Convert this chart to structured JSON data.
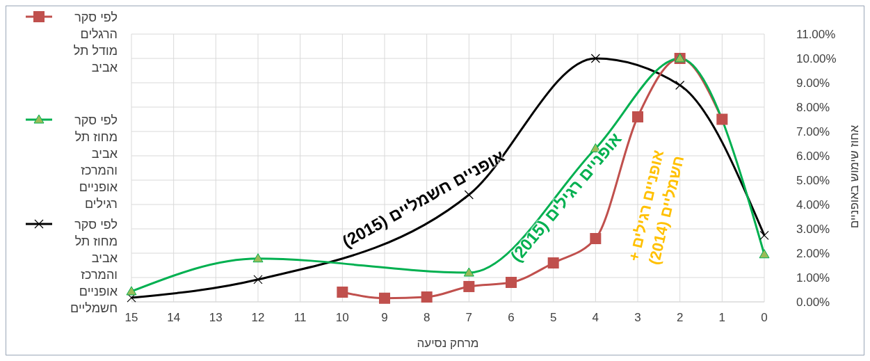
{
  "chart_data": {
    "type": "line",
    "xlabel": "מרחק נסיעה",
    "ylabel": "אחוז שימוש באופניים",
    "xlim": [
      15,
      0
    ],
    "xticks": [
      15,
      14,
      13,
      12,
      11,
      10,
      9,
      8,
      7,
      6,
      5,
      4,
      3,
      2,
      1,
      0
    ],
    "ylim": [
      0,
      11
    ],
    "yticks": [
      {
        "value": 0,
        "label": "0.00%"
      },
      {
        "value": 1,
        "label": "1.00%"
      },
      {
        "value": 2,
        "label": "2.00%"
      },
      {
        "value": 3,
        "label": "3.00%"
      },
      {
        "value": 4,
        "label": "4.00%"
      },
      {
        "value": 5,
        "label": "5.00%"
      },
      {
        "value": 6,
        "label": "6.00%"
      },
      {
        "value": 7,
        "label": "7.00%"
      },
      {
        "value": 8,
        "label": "8.00%"
      },
      {
        "value": 9,
        "label": "9.00%"
      },
      {
        "value": 10,
        "label": "10.00%"
      },
      {
        "value": 11,
        "label": "11.00%"
      }
    ],
    "grid": true,
    "legend": "left",
    "line_style": "solid",
    "series": [
      {
        "name": "לפי סקר הרגלים מודל תל אביב",
        "color": "#c0504d",
        "marker": "square",
        "x": [
          10,
          9,
          8,
          7,
          6,
          5,
          4,
          3,
          2,
          1
        ],
        "values": [
          0.4,
          0.15,
          0.2,
          0.63,
          0.8,
          1.6,
          2.6,
          7.6,
          10.0,
          7.5
        ]
      },
      {
        "name": "לפי סקר מחוז תל אביב והמרכז אופניים רגילים",
        "color": "#00b050",
        "marker": "triangle",
        "x": [
          15,
          12,
          7,
          4,
          2,
          0
        ],
        "values": [
          0.43,
          1.78,
          1.2,
          6.3,
          10.0,
          1.95
        ]
      },
      {
        "name": "לפי סקר מחוז תל אביב והמרכז אופניים חשמליים",
        "color": "#000000",
        "marker": "cross",
        "x": [
          15,
          12,
          7,
          4,
          2,
          0
        ],
        "values": [
          0.17,
          0.92,
          4.4,
          10.0,
          8.9,
          2.73
        ]
      }
    ],
    "annotations": [
      "אופניים חשמליים (2015)",
      "אופניים רגילים (2015)",
      "אופניים רגילים + חשמליים (2014)"
    ]
  }
}
